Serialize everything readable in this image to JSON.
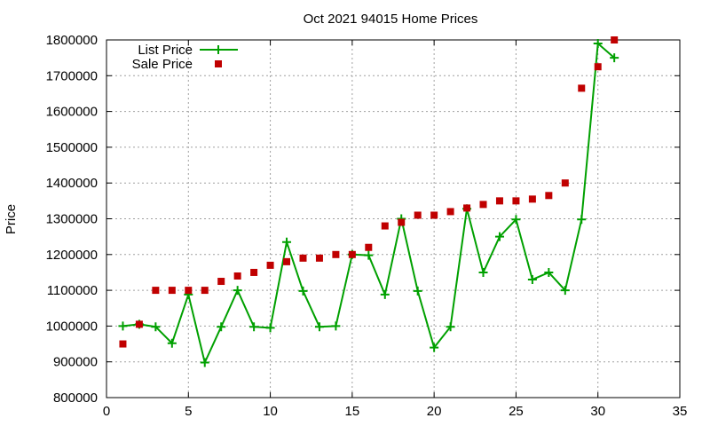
{
  "chart_data": {
    "type": "line",
    "title": "Oct 2021 94015 Home Prices",
    "xlabel": "",
    "ylabel": "Price",
    "xlim": [
      0,
      35
    ],
    "ylim": [
      800000,
      1800000
    ],
    "xticks": [
      0,
      5,
      10,
      15,
      20,
      25,
      30,
      35
    ],
    "yticks": [
      800000,
      900000,
      1000000,
      1100000,
      1200000,
      1300000,
      1400000,
      1500000,
      1600000,
      1700000,
      1800000
    ],
    "grid": true,
    "legend_position": "top-left",
    "x": [
      1,
      2,
      3,
      4,
      5,
      6,
      7,
      8,
      9,
      10,
      11,
      12,
      13,
      14,
      15,
      16,
      17,
      18,
      19,
      20,
      21,
      22,
      23,
      24,
      25,
      26,
      27,
      28,
      29,
      30,
      31
    ],
    "series": [
      {
        "name": "List Price",
        "style": "line-with-plus-markers",
        "color": "#00a000",
        "values": [
          1000000,
          1005000,
          998000,
          952000,
          1088000,
          898000,
          998000,
          1100000,
          998000,
          995000,
          1235000,
          1098000,
          998000,
          1000000,
          1200000,
          1198000,
          1088000,
          1300000,
          1098000,
          940000,
          998000,
          1328000,
          1150000,
          1250000,
          1298000,
          1130000,
          1150000,
          1100000,
          1298000,
          1790000,
          1750000
        ]
      },
      {
        "name": "Sale Price",
        "style": "square-markers",
        "color": "#c00000",
        "values": [
          950000,
          1005000,
          1100000,
          1100000,
          1100000,
          1100000,
          1125000,
          1140000,
          1150000,
          1170000,
          1180000,
          1190000,
          1190000,
          1200000,
          1200000,
          1220000,
          1280000,
          1290000,
          1310000,
          1310000,
          1320000,
          1330000,
          1340000,
          1350000,
          1350000,
          1355000,
          1365000,
          1400000,
          1665000,
          1725000,
          1800000
        ]
      }
    ]
  }
}
